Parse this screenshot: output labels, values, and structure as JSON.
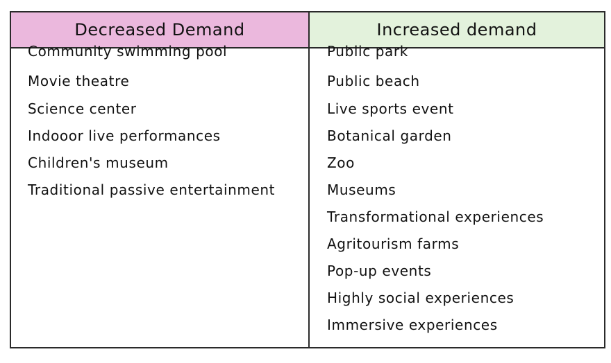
{
  "colors": {
    "left_header_bg": "#ebb8dd",
    "right_header_bg": "#e3f2dc",
    "border": "#2a2a2a"
  },
  "headers": {
    "left": "Decreased Demand",
    "right": "Increased demand"
  },
  "decreased": [
    "Community swimming pool",
    "Movie theatre",
    "Science center",
    "Indooor live performances",
    "Children's museum",
    "Traditional passive entertainment"
  ],
  "increased": [
    "Public park",
    "Public beach",
    "Live sports event",
    "Botanical garden",
    "Zoo",
    "Museums",
    "Transformational experiences",
    "Agritourism farms",
    "Pop-up events",
    "Highly social experiences",
    "Immersive experiences"
  ]
}
